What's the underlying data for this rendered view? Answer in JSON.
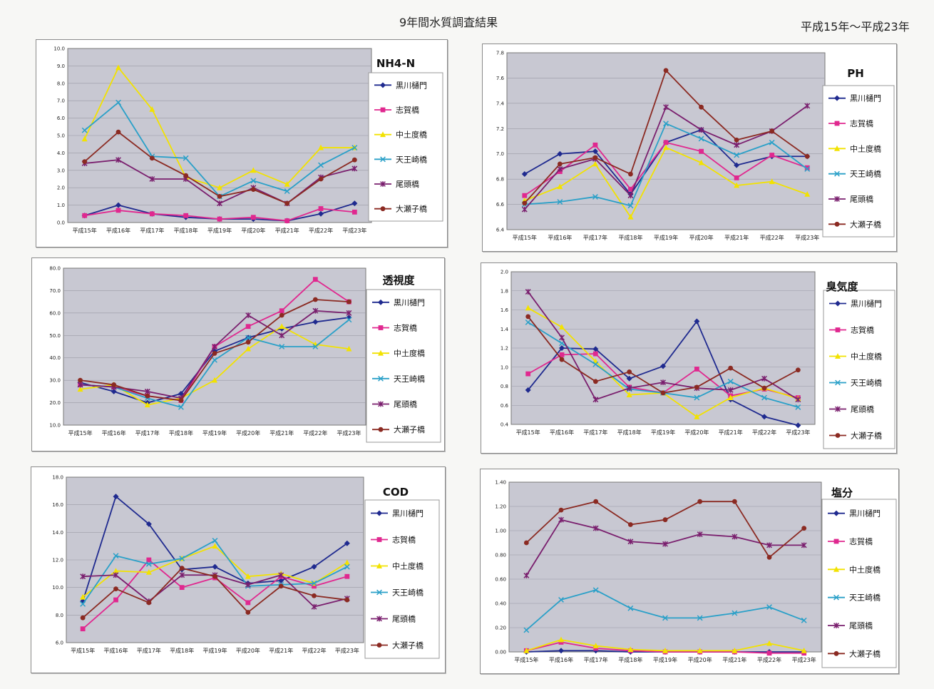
{
  "page_title": "9年間水質調査結果",
  "period": "平成15年～平成23年",
  "series_styles": [
    {
      "name": "黒川樋門",
      "color": "#1f2a8f",
      "marker": "diamond"
    },
    {
      "name": "志賀橋",
      "color": "#e0288f",
      "marker": "square"
    },
    {
      "name": "中土度橋",
      "color": "#f2e200",
      "marker": "triangle"
    },
    {
      "name": "天王崎橋",
      "color": "#2aa0c8",
      "marker": "x"
    },
    {
      "name": "尾頭橋",
      "color": "#7a1f6e",
      "marker": "star"
    },
    {
      "name": "大瀬子橋",
      "color": "#8b2a22",
      "marker": "circle"
    }
  ],
  "chart_data": [
    {
      "type": "line",
      "title": "NH4-N",
      "categories": [
        "平成15年",
        "平成16年",
        "平成17年",
        "平成18年",
        "平成19年",
        "平成20年",
        "平成21年",
        "平成22年",
        "平成23年"
      ],
      "ylim": [
        0,
        10
      ],
      "yticks": [
        "0.0",
        "1.0",
        "2.0",
        "3.0",
        "4.0",
        "5.0",
        "6.0",
        "7.0",
        "8.0",
        "9.0",
        "10.0"
      ],
      "series": [
        {
          "name": "黒川樋門",
          "values": [
            0.4,
            1.0,
            0.5,
            0.3,
            0.2,
            0.2,
            0.1,
            0.5,
            1.1
          ]
        },
        {
          "name": "志賀橋",
          "values": [
            0.4,
            0.7,
            0.5,
            0.4,
            0.2,
            0.3,
            0.1,
            0.8,
            0.6
          ]
        },
        {
          "name": "中土度橋",
          "values": [
            4.8,
            8.9,
            6.5,
            2.6,
            2.0,
            3.0,
            2.2,
            4.3,
            4.3
          ]
        },
        {
          "name": "天王崎橋",
          "values": [
            5.3,
            6.9,
            3.8,
            3.7,
            1.5,
            2.4,
            1.8,
            3.3,
            4.3
          ]
        },
        {
          "name": "尾頭橋",
          "values": [
            3.4,
            3.6,
            2.5,
            2.5,
            1.1,
            2.0,
            1.1,
            2.6,
            3.1
          ]
        },
        {
          "name": "大瀬子橋",
          "values": [
            3.5,
            5.2,
            3.7,
            2.7,
            1.5,
            1.9,
            1.1,
            2.5,
            3.6
          ]
        }
      ]
    },
    {
      "type": "line",
      "title": "PH",
      "categories": [
        "平成15年",
        "平成16年",
        "平成17年",
        "平成18年",
        "平成19年",
        "平成20年",
        "平成21年",
        "平成22年",
        "平成23年"
      ],
      "ylim": [
        6.4,
        7.8
      ],
      "yticks": [
        "6.4",
        "6.6",
        "6.8",
        "7.0",
        "7.2",
        "7.4",
        "7.6",
        "7.8"
      ],
      "series": [
        {
          "name": "黒川樋門",
          "values": [
            6.84,
            7.0,
            7.02,
            6.68,
            7.09,
            7.19,
            6.91,
            6.98,
            6.98
          ]
        },
        {
          "name": "志賀橋",
          "values": [
            6.67,
            6.86,
            7.07,
            6.72,
            7.09,
            7.02,
            6.81,
            6.99,
            6.89
          ]
        },
        {
          "name": "中土度橋",
          "values": [
            6.63,
            6.74,
            6.92,
            6.5,
            7.05,
            6.93,
            6.75,
            6.78,
            6.68
          ]
        },
        {
          "name": "天王崎橋",
          "values": [
            6.6,
            6.62,
            6.66,
            6.59,
            7.24,
            7.12,
            6.99,
            7.09,
            6.88
          ]
        },
        {
          "name": "尾頭橋",
          "values": [
            6.56,
            6.88,
            6.96,
            6.67,
            7.37,
            7.19,
            7.07,
            7.18,
            7.38
          ]
        },
        {
          "name": "大瀬子橋",
          "values": [
            6.61,
            6.92,
            6.97,
            6.84,
            7.66,
            7.37,
            7.11,
            7.18,
            6.98
          ]
        }
      ]
    },
    {
      "type": "line",
      "title": "透視度",
      "categories": [
        "平成15年",
        "平成16年",
        "平成17年",
        "平成18年",
        "平成19年",
        "平成20年",
        "平成21年",
        "平成22年",
        "平成23年"
      ],
      "ylim": [
        10,
        80
      ],
      "yticks": [
        "10.0",
        "20.0",
        "30.0",
        "40.0",
        "50.0",
        "60.0",
        "70.0",
        "80.0"
      ],
      "series": [
        {
          "name": "黒川樋門",
          "values": [
            29,
            25,
            20,
            24,
            43,
            49,
            53,
            56,
            58
          ]
        },
        {
          "name": "志賀橋",
          "values": [
            28,
            27,
            23,
            21,
            45,
            54,
            61,
            75,
            65
          ]
        },
        {
          "name": "中土度橋",
          "values": [
            26,
            28,
            19,
            22,
            30,
            44,
            54,
            46,
            44
          ]
        },
        {
          "name": "天王崎橋",
          "values": [
            28,
            27,
            22,
            18,
            39,
            49,
            45,
            45,
            57
          ]
        },
        {
          "name": "尾頭橋",
          "values": [
            28,
            27,
            25,
            22,
            45,
            59,
            50,
            61,
            60
          ]
        },
        {
          "name": "大瀬子橋",
          "values": [
            30,
            28,
            23,
            21,
            42,
            47,
            59,
            66,
            65
          ]
        }
      ]
    },
    {
      "type": "line",
      "title": "臭気度",
      "categories": [
        "平成15年",
        "平成16年",
        "平成17年",
        "平成18年",
        "平成19年",
        "平成20年",
        "平成21年",
        "平成22年",
        "平成23年"
      ],
      "ylim": [
        0.4,
        2.0
      ],
      "yticks": [
        "0.4",
        "0.6",
        "0.8",
        "1.0",
        "1.2",
        "1.4",
        "1.6",
        "1.8",
        "2.0"
      ],
      "series": [
        {
          "name": "黒川樋門",
          "values": [
            0.76,
            1.2,
            1.19,
            0.88,
            1.01,
            1.48,
            0.66,
            0.48,
            0.39
          ]
        },
        {
          "name": "志賀橋",
          "values": [
            0.93,
            1.13,
            1.14,
            0.79,
            0.73,
            0.98,
            0.7,
            0.77,
            0.68
          ]
        },
        {
          "name": "中土度橋",
          "values": [
            1.62,
            1.42,
            1.06,
            0.71,
            0.73,
            0.48,
            0.68,
            0.78,
            0.67
          ]
        },
        {
          "name": "天王崎橋",
          "values": [
            1.47,
            1.25,
            1.03,
            0.77,
            0.73,
            0.68,
            0.85,
            0.68,
            0.58
          ]
        },
        {
          "name": "尾頭橋",
          "values": [
            1.79,
            1.31,
            0.66,
            0.78,
            0.84,
            0.78,
            0.76,
            0.88,
            0.66
          ]
        },
        {
          "name": "大瀬子橋",
          "values": [
            1.53,
            1.08,
            0.85,
            0.95,
            0.73,
            0.79,
            0.99,
            0.78,
            0.97
          ]
        }
      ]
    },
    {
      "type": "line",
      "title": "COD",
      "categories": [
        "平成15年",
        "平成16年",
        "平成17年",
        "平成18年",
        "平成19年",
        "平成20年",
        "平成21年",
        "平成22年",
        "平成23年"
      ],
      "ylim": [
        6,
        18
      ],
      "yticks": [
        "6.0",
        "8.0",
        "10.0",
        "12.0",
        "14.0",
        "16.0",
        "18.0"
      ],
      "series": [
        {
          "name": "黒川樋門",
          "values": [
            9.0,
            16.6,
            14.6,
            11.3,
            11.5,
            10.3,
            10.5,
            11.5,
            13.2
          ]
        },
        {
          "name": "志賀橋",
          "values": [
            7.0,
            9.1,
            12.0,
            10.0,
            10.7,
            8.9,
            10.8,
            10.1,
            10.8
          ]
        },
        {
          "name": "中土度橋",
          "values": [
            9.3,
            11.2,
            11.1,
            12.1,
            13.0,
            10.8,
            11.0,
            10.3,
            11.8
          ]
        },
        {
          "name": "天王崎橋",
          "values": [
            8.8,
            12.3,
            11.7,
            12.1,
            13.4,
            10.1,
            10.2,
            10.3,
            11.5
          ]
        },
        {
          "name": "尾頭橋",
          "values": [
            10.8,
            10.9,
            9.0,
            10.9,
            10.9,
            10.2,
            10.9,
            8.6,
            9.2
          ]
        },
        {
          "name": "大瀬子橋",
          "values": [
            7.8,
            9.9,
            8.9,
            11.4,
            10.8,
            8.2,
            10.1,
            9.4,
            9.1
          ]
        }
      ]
    },
    {
      "type": "line",
      "title": "塩分",
      "categories": [
        "平成15年",
        "平成16年",
        "平成17年",
        "平成18年",
        "平成19年",
        "平成20年",
        "平成21年",
        "平成22年",
        "平成23年"
      ],
      "ylim": [
        0,
        1.4
      ],
      "yticks": [
        "0.00",
        "0.20",
        "0.40",
        "0.60",
        "0.80",
        "1.00",
        "1.20",
        "1.40"
      ],
      "series": [
        {
          "name": "黒川樋門",
          "values": [
            0.0,
            0.01,
            0.01,
            0.0,
            0.0,
            0.0,
            0.0,
            0.0,
            0.0
          ]
        },
        {
          "name": "志賀橋",
          "values": [
            0.01,
            0.08,
            0.03,
            0.01,
            0.0,
            0.0,
            0.0,
            -0.01,
            -0.01
          ]
        },
        {
          "name": "中土度橋",
          "values": [
            0.01,
            0.1,
            0.05,
            0.02,
            0.01,
            0.01,
            0.01,
            0.07,
            0.01
          ]
        },
        {
          "name": "天王崎橋",
          "values": [
            0.18,
            0.43,
            0.51,
            0.36,
            0.28,
            0.28,
            0.32,
            0.37,
            0.26
          ]
        },
        {
          "name": "尾頭橋",
          "values": [
            0.63,
            1.09,
            1.02,
            0.91,
            0.89,
            0.97,
            0.95,
            0.88,
            0.88
          ]
        },
        {
          "name": "大瀬子橋",
          "values": [
            0.9,
            1.17,
            1.24,
            1.05,
            1.09,
            1.24,
            1.24,
            0.78,
            1.02
          ]
        }
      ]
    }
  ]
}
